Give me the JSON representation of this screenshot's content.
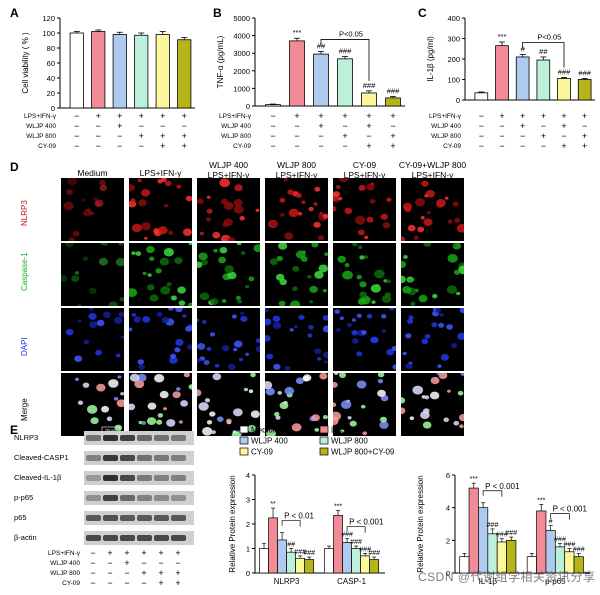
{
  "panels": {
    "A": "A",
    "B": "B",
    "C": "C",
    "D": "D",
    "E": "E"
  },
  "treatment_labels": [
    "LPS+IFN-γ",
    "WLJP 400",
    "WLJP 800",
    "CY-09"
  ],
  "treatment_matrix": [
    [
      "−",
      "+",
      "+",
      "+",
      "+",
      "+"
    ],
    [
      "−",
      "−",
      "+",
      "−",
      "−",
      "−"
    ],
    [
      "−",
      "−",
      "−",
      "+",
      "+",
      "+"
    ],
    [
      "−",
      "−",
      "−",
      "−",
      "+",
      "+"
    ]
  ],
  "treatment_matrix_B": [
    [
      "−",
      "+",
      "+",
      "+",
      "+",
      "+"
    ],
    [
      "−",
      "−",
      "+",
      "−",
      "+",
      "−"
    ],
    [
      "−",
      "−",
      "−",
      "+",
      "−",
      "+"
    ],
    [
      "−",
      "−",
      "−",
      "−",
      "+",
      "+"
    ]
  ],
  "bar_colors": [
    "#ffffff",
    "#f28b96",
    "#aecbef",
    "#bdf0d8",
    "#fbf79a",
    "#b7b419"
  ],
  "chart_data": [
    {
      "type": "bar",
      "id": "A",
      "ylabel": "Cell viability ( % )",
      "ylim": [
        0,
        120
      ],
      "yticks": [
        "0",
        "20",
        "40",
        "60",
        "80",
        "100",
        "120"
      ],
      "values": [
        100,
        102,
        98,
        97,
        98,
        91
      ],
      "errors": [
        2,
        2,
        3,
        3,
        4,
        3
      ],
      "annotations": []
    },
    {
      "type": "bar",
      "id": "B",
      "ylabel": "TNF-α (pg/mL)",
      "ylim": [
        0,
        5000
      ],
      "yticks": [
        "0",
        "1000",
        "2000",
        "3000",
        "4000",
        "5000"
      ],
      "values": [
        80,
        3700,
        2950,
        2680,
        740,
        460
      ],
      "errors": [
        30,
        150,
        150,
        130,
        120,
        80
      ],
      "annotations": [
        "",
        "***",
        "##",
        "###",
        "###",
        "###"
      ],
      "bracket": "P<0.05"
    },
    {
      "type": "bar",
      "id": "C",
      "ylabel": "IL-1β (pg/ml)",
      "ylim": [
        0,
        400
      ],
      "yticks": [
        "0",
        "100",
        "200",
        "300",
        "400"
      ],
      "values": [
        35,
        265,
        210,
        195,
        105,
        100
      ],
      "errors": [
        4,
        18,
        12,
        15,
        5,
        5
      ],
      "annotations": [
        "",
        "***",
        "#",
        "##",
        "###",
        "###"
      ],
      "bracket": "P<0.05"
    },
    {
      "type": "bar",
      "id": "E1",
      "ylabel": "Relative Protein expression",
      "ylim": [
        0,
        4
      ],
      "yticks": [
        "0",
        "1",
        "2",
        "3",
        "4"
      ],
      "categories": [
        "NLRP3",
        "CASP-1"
      ],
      "series": [
        {
          "name": "Medium",
          "values": [
            1.0,
            1.0
          ],
          "errors": [
            0.2,
            0.1
          ]
        },
        {
          "name": "LPS+IFN-γ",
          "values": [
            2.25,
            2.35
          ],
          "errors": [
            0.4,
            0.2
          ]
        },
        {
          "name": "WLJP 400",
          "values": [
            1.35,
            1.25
          ],
          "errors": [
            0.3,
            0.15
          ]
        },
        {
          "name": "WLJP 800",
          "values": [
            0.85,
            1.0
          ],
          "errors": [
            0.15,
            0.1
          ]
        },
        {
          "name": "CY-09",
          "values": [
            0.6,
            0.7
          ],
          "errors": [
            0.1,
            0.1
          ]
        },
        {
          "name": "WLJP 800+CY-09",
          "values": [
            0.55,
            0.55
          ],
          "errors": [
            0.1,
            0.1
          ]
        }
      ],
      "annotations": [
        [
          "",
          "**",
          "",
          "##",
          "###",
          "###"
        ],
        [
          "",
          "***",
          "###",
          "###",
          "###",
          "###"
        ]
      ],
      "brackets": [
        "P < 0.01",
        "P < 0.001"
      ]
    },
    {
      "type": "bar",
      "id": "E2",
      "ylabel": "Relative Protein expression",
      "ylim": [
        0,
        6
      ],
      "yticks": [
        "0",
        "2",
        "4",
        "6"
      ],
      "categories": [
        "IL-1β",
        "p-p65"
      ],
      "series": [
        {
          "name": "Medium",
          "values": [
            1.0,
            1.0
          ],
          "errors": [
            0.2,
            0.2
          ]
        },
        {
          "name": "LPS+IFN-γ",
          "values": [
            5.2,
            3.8
          ],
          "errors": [
            0.3,
            0.4
          ]
        },
        {
          "name": "WLJP 400",
          "values": [
            4.0,
            2.6
          ],
          "errors": [
            0.3,
            0.3
          ]
        },
        {
          "name": "WLJP 800",
          "values": [
            2.4,
            1.6
          ],
          "errors": [
            0.3,
            0.2
          ]
        },
        {
          "name": "CY-09",
          "values": [
            1.9,
            1.3
          ],
          "errors": [
            0.2,
            0.2
          ]
        },
        {
          "name": "WLJP 800+CY-09",
          "values": [
            2.0,
            1.0
          ],
          "errors": [
            0.2,
            0.2
          ]
        }
      ],
      "annotations": [
        [
          "",
          "***",
          "",
          "###",
          "###",
          "###"
        ],
        [
          "",
          "***",
          "#",
          "###",
          "###",
          "###"
        ]
      ],
      "brackets": [
        "P < 0.001",
        "P < 0.001"
      ]
    }
  ],
  "legend": [
    "Medium",
    "LPS+IFN-γ",
    "WLJP 400",
    "WLJP 800",
    "CY-09",
    "WLJP 800+CY-09"
  ],
  "microscopy": {
    "columns": [
      "Medium",
      "LPS+IFN-γ",
      "WLJP 400\nLPS+IFN-γ",
      "WLJP 800\nLPS+IFN-γ",
      "CY-09\nLPS+IFN-γ",
      "CY-09+WLJP 800\nLPS+IFN-γ"
    ],
    "rows": [
      "NLRP3",
      "Caspase-1",
      "DAPI",
      "Merge"
    ],
    "row_colors": [
      "#d01010",
      "#20b020",
      "#2030e0",
      "#000000"
    ],
    "scale_bar": "50 μm"
  },
  "western_blot": {
    "bands": [
      "NLRP3",
      "Cleaved-CASP1",
      "Cleaved-IL-1β",
      "p-p65",
      "p65",
      "β-actin"
    ]
  },
  "watermark": "CSDN @代谢组学相关资讯分享"
}
